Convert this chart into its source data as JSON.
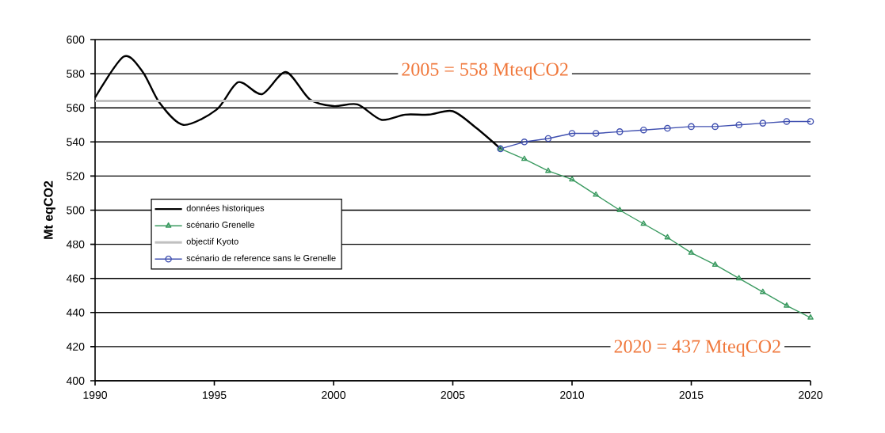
{
  "chart_data": {
    "type": "line",
    "ylabel": "Mt eqCO2",
    "xlim": [
      1990,
      2020
    ],
    "xticks": [
      1990,
      1995,
      2000,
      2005,
      2010,
      2015,
      2020
    ],
    "ylim": [
      400,
      600
    ],
    "yticks": [
      400,
      420,
      440,
      460,
      480,
      500,
      520,
      540,
      560,
      580,
      600
    ],
    "grid": "y",
    "legend": "left",
    "annotations": [
      "2005 = 558 MteqCO2",
      "2020 = 437 MteqCO2"
    ],
    "series": [
      {
        "name": "données historiques",
        "color": "#000000",
        "marker": "none",
        "x": [
          1990,
          1991.2,
          1992,
          1992.7,
          1993.7,
          1995.1,
          1996,
          1997,
          1998,
          1999,
          2000,
          2001,
          2002,
          2003,
          2004,
          2005,
          2006,
          2007
        ],
        "values": [
          566,
          590,
          581,
          563,
          550,
          559,
          575,
          568,
          581,
          565,
          561,
          562,
          553,
          556,
          556,
          558,
          548,
          536
        ]
      },
      {
        "name": "scénario Grenelle",
        "color": "#3a9a60",
        "marker": "triangle",
        "x": [
          2007,
          2008,
          2009,
          2010,
          2011,
          2012,
          2013,
          2014,
          2015,
          2016,
          2017,
          2018,
          2019,
          2020
        ],
        "values": [
          536,
          530,
          523,
          518,
          509,
          500,
          492,
          484,
          475,
          468,
          460,
          452,
          444,
          437
        ]
      },
      {
        "name": "objectif Kyoto",
        "color": "#c0c0c0",
        "marker": "none",
        "x": [
          1990,
          2020
        ],
        "values": [
          564,
          564
        ]
      },
      {
        "name": "scénario de reference sans le Grenelle",
        "color": "#4050b0",
        "marker": "circle",
        "x": [
          2007,
          2008,
          2009,
          2010,
          2011,
          2012,
          2013,
          2014,
          2015,
          2016,
          2017,
          2018,
          2019,
          2020
        ],
        "values": [
          536,
          540,
          542,
          545,
          545,
          546,
          547,
          548,
          549,
          549,
          550,
          551,
          552,
          552
        ]
      }
    ]
  }
}
